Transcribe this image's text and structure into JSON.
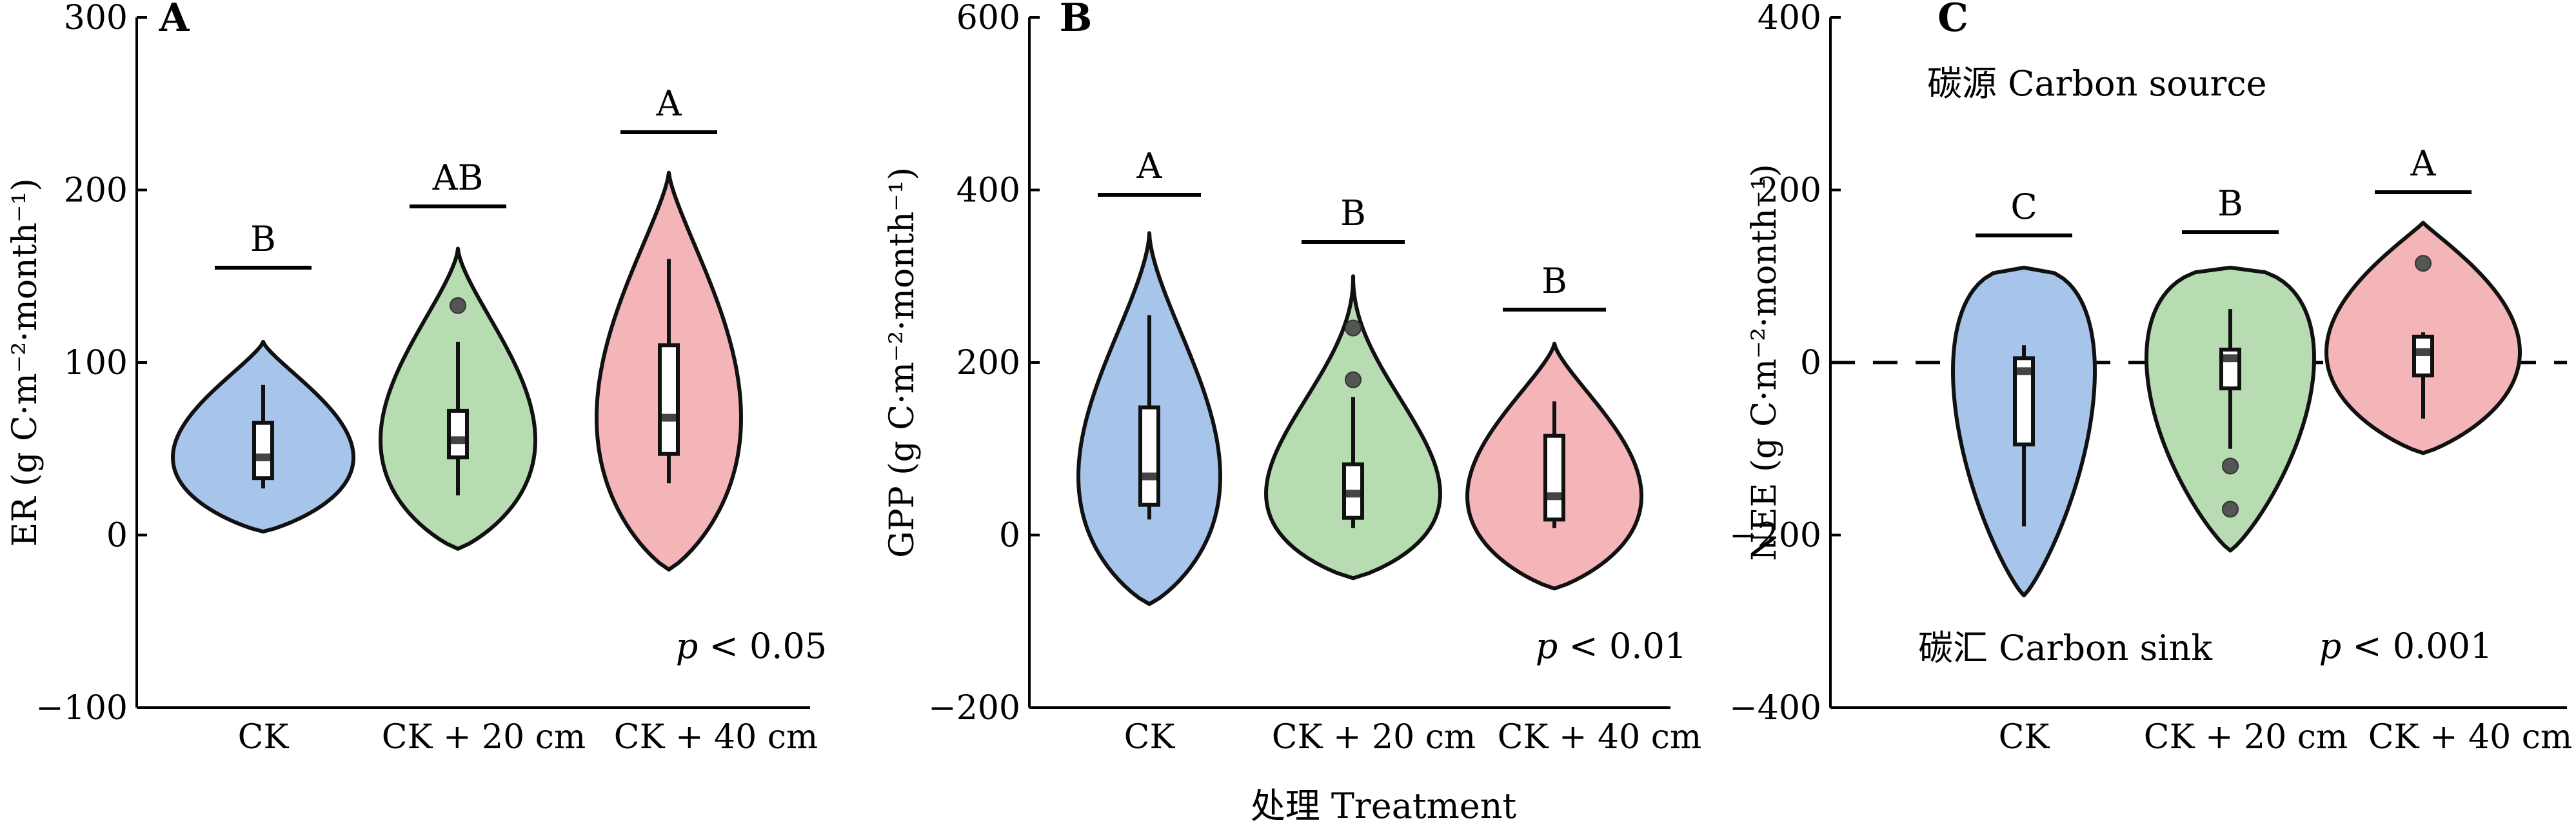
{
  "figure": {
    "xlabel": "处理 Treatment",
    "colors": {
      "CK": "#a7c4ea",
      "CK + 20 cm": "#b7dcb2",
      "CK + 40 cm": "#f4b5b8",
      "outline": "#111111"
    }
  },
  "chart_data": [
    {
      "panel": "A",
      "type": "violin",
      "ylabel": "ER (g C·m⁻²·month⁻¹)",
      "ylim": [
        -100,
        300
      ],
      "yticks": [
        "−100",
        "0",
        "100",
        "200",
        "300"
      ],
      "categories": [
        "CK",
        "CK + 20 cm",
        "CK + 40 cm"
      ],
      "significance": [
        "B",
        "AB",
        "A"
      ],
      "p_value": "p < 0.05",
      "series": [
        {
          "category": "CK",
          "min": 27,
          "q1": 33,
          "median": 45,
          "q3": 65,
          "max": 87,
          "violin_min": 2,
          "violin_max": 112,
          "outliers": []
        },
        {
          "category": "CK + 20 cm",
          "min": 23,
          "q1": 45,
          "median": 55,
          "q3": 72,
          "max": 112,
          "violin_min": -8,
          "violin_max": 166,
          "outliers": [
            133
          ]
        },
        {
          "category": "CK + 40 cm",
          "min": 30,
          "q1": 47,
          "median": 68,
          "q3": 110,
          "max": 160,
          "violin_min": -20,
          "violin_max": 210,
          "outliers": []
        }
      ]
    },
    {
      "panel": "B",
      "type": "violin",
      "ylabel": "GPP (g C·m⁻²·month⁻¹)",
      "ylim": [
        -200,
        600
      ],
      "yticks": [
        "−200",
        "0",
        "200",
        "400",
        "600"
      ],
      "categories": [
        "CK",
        "CK + 20 cm",
        "CK + 40 cm"
      ],
      "significance": [
        "A",
        "B",
        "B"
      ],
      "p_value": "p < 0.01",
      "series": [
        {
          "category": "CK",
          "min": 18,
          "q1": 35,
          "median": 68,
          "q3": 148,
          "max": 255,
          "violin_min": -80,
          "violin_max": 350,
          "outliers": []
        },
        {
          "category": "CK + 20 cm",
          "min": 8,
          "q1": 20,
          "median": 48,
          "q3": 82,
          "max": 160,
          "violin_min": -50,
          "violin_max": 300,
          "outliers": [
            180,
            240
          ]
        },
        {
          "category": "CK + 40 cm",
          "min": 8,
          "q1": 18,
          "median": 45,
          "q3": 115,
          "max": 155,
          "violin_min": -62,
          "violin_max": 222,
          "outliers": []
        }
      ]
    },
    {
      "panel": "C",
      "type": "violin",
      "ylabel": "NEE (g C·m⁻²·month⁻¹)",
      "ylim": [
        -400,
        400
      ],
      "yticks": [
        "−400",
        "−200",
        "0",
        "200",
        "400"
      ],
      "categories": [
        "CK",
        "CK + 20 cm",
        "CK + 40 cm"
      ],
      "significance": [
        "C",
        "B",
        "A"
      ],
      "p_value": "p < 0.001",
      "annotations": {
        "top": "碳源 Carbon source",
        "bottom": "碳汇 Carbon sink"
      },
      "zero_line": "dashed",
      "series": [
        {
          "category": "CK",
          "min": -190,
          "q1": -95,
          "median": -10,
          "q3": 5,
          "max": 20,
          "violin_min": -270,
          "violin_max": 110,
          "outliers": []
        },
        {
          "category": "CK + 20 cm",
          "min": -100,
          "q1": -30,
          "median": 5,
          "q3": 15,
          "max": 62,
          "violin_min": -218,
          "violin_max": 110,
          "outliers": [
            -120,
            -170
          ]
        },
        {
          "category": "CK + 40 cm",
          "min": -65,
          "q1": -15,
          "median": 12,
          "q3": 30,
          "max": 35,
          "violin_min": -105,
          "violin_max": 162,
          "outliers": [
            115
          ]
        }
      ]
    }
  ]
}
